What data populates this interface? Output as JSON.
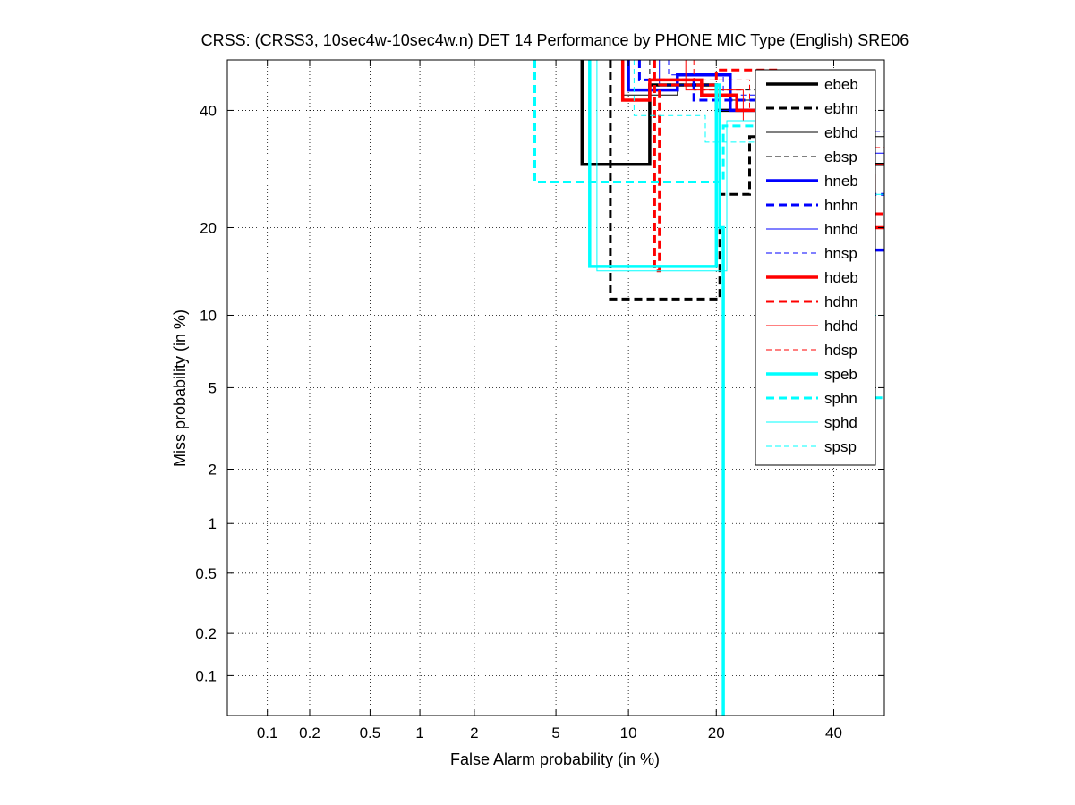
{
  "chart_data": {
    "type": "line",
    "title": "CRSS: (CRSS3, 10sec4w-10sec4w.n) DET 14 Performance by PHONE MIC Type (English) SRE06",
    "xlabel": "False Alarm probability (in %)",
    "ylabel": "Miss probability (in %)",
    "xlim": [
      0.05,
      50
    ],
    "ylim": [
      0.05,
      50
    ],
    "x_scale": "normal-deviate (probit)",
    "y_scale": "normal-deviate (probit)",
    "grid": true,
    "legend_position": "top-right",
    "x_ticks": [
      {
        "value": 0.1,
        "label": "0.1"
      },
      {
        "value": 0.2,
        "label": "0.2"
      },
      {
        "value": 0.5,
        "label": "0.5"
      },
      {
        "value": 1,
        "label": "1"
      },
      {
        "value": 2,
        "label": "2"
      },
      {
        "value": 5,
        "label": "5"
      },
      {
        "value": 10,
        "label": "10"
      },
      {
        "value": 20,
        "label": "20"
      },
      {
        "value": 40,
        "label": "40"
      }
    ],
    "y_ticks": [
      {
        "value": 0.1,
        "label": "0.1"
      },
      {
        "value": 0.2,
        "label": "0.2"
      },
      {
        "value": 0.5,
        "label": "0.5"
      },
      {
        "value": 1,
        "label": "1"
      },
      {
        "value": 2,
        "label": "2"
      },
      {
        "value": 5,
        "label": "5"
      },
      {
        "value": 10,
        "label": "10"
      },
      {
        "value": 20,
        "label": "20"
      },
      {
        "value": 40,
        "label": "40"
      }
    ],
    "series": [
      {
        "name": "ebeb",
        "color": "#000000",
        "width": 3.5,
        "dash": "",
        "points": [
          [
            6.5,
            50
          ],
          [
            6.5,
            30
          ],
          [
            12,
            30
          ],
          [
            12,
            45
          ],
          [
            20,
            45
          ],
          [
            20,
            40
          ],
          [
            30,
            40
          ],
          [
            30,
            30
          ],
          [
            50,
            30
          ]
        ]
      },
      {
        "name": "ebhn",
        "color": "#000000",
        "width": 3,
        "dash": "9,5",
        "points": [
          [
            8.5,
            50
          ],
          [
            8.5,
            11.5
          ],
          [
            20.5,
            11.5
          ],
          [
            20.5,
            25
          ],
          [
            25,
            25
          ],
          [
            25,
            35
          ],
          [
            35,
            35
          ],
          [
            35,
            20
          ],
          [
            50,
            20
          ]
        ]
      },
      {
        "name": "ebhd",
        "color": "#000000",
        "width": 1,
        "dash": "",
        "points": [
          [
            9.5,
            50
          ],
          [
            9.5,
            43
          ],
          [
            15,
            43
          ],
          [
            15,
            47
          ],
          [
            22,
            47
          ],
          [
            22,
            42
          ],
          [
            40,
            42
          ],
          [
            40,
            35
          ],
          [
            50,
            35
          ]
        ]
      },
      {
        "name": "ebsp",
        "color": "#000000",
        "width": 1,
        "dash": "6,4",
        "points": [
          [
            12,
            50
          ],
          [
            12,
            46
          ],
          [
            17,
            46
          ],
          [
            17,
            44
          ],
          [
            26,
            44
          ],
          [
            26,
            38
          ],
          [
            40,
            38
          ],
          [
            40,
            30
          ],
          [
            50,
            30
          ]
        ]
      },
      {
        "name": "hneb",
        "color": "#0000ff",
        "width": 3.5,
        "dash": "",
        "points": [
          [
            10,
            50
          ],
          [
            10,
            44
          ],
          [
            15,
            44
          ],
          [
            15,
            47
          ],
          [
            22,
            47
          ],
          [
            22,
            40
          ],
          [
            30,
            40
          ],
          [
            30,
            30
          ],
          [
            47,
            30
          ],
          [
            47,
            17
          ],
          [
            50,
            17
          ]
        ]
      },
      {
        "name": "hnhn",
        "color": "#0000ff",
        "width": 3,
        "dash": "9,5",
        "points": [
          [
            11,
            50
          ],
          [
            11,
            46
          ],
          [
            17,
            46
          ],
          [
            17,
            42
          ],
          [
            28,
            42
          ],
          [
            28,
            35
          ],
          [
            40,
            35
          ],
          [
            40,
            25
          ],
          [
            50,
            25
          ]
        ]
      },
      {
        "name": "hnhd",
        "color": "#0000ff",
        "width": 1,
        "dash": "",
        "points": [
          [
            13,
            50
          ],
          [
            13,
            45
          ],
          [
            20,
            45
          ],
          [
            20,
            40
          ],
          [
            35,
            40
          ],
          [
            35,
            32
          ],
          [
            50,
            32
          ]
        ]
      },
      {
        "name": "hnsp",
        "color": "#0000ff",
        "width": 1,
        "dash": "6,4",
        "points": [
          [
            14,
            50
          ],
          [
            14,
            47
          ],
          [
            21,
            47
          ],
          [
            21,
            43
          ],
          [
            33,
            43
          ],
          [
            33,
            36
          ],
          [
            50,
            36
          ]
        ]
      },
      {
        "name": "hdeb",
        "color": "#ff0000",
        "width": 3.5,
        "dash": "",
        "points": [
          [
            9.5,
            50
          ],
          [
            9.5,
            42
          ],
          [
            12,
            42
          ],
          [
            12,
            46
          ],
          [
            18,
            46
          ],
          [
            18,
            43
          ],
          [
            23,
            43
          ],
          [
            23,
            40
          ],
          [
            38,
            40
          ],
          [
            38,
            28
          ],
          [
            48,
            28
          ],
          [
            48,
            20
          ],
          [
            50,
            20
          ]
        ]
      },
      {
        "name": "hdhn",
        "color": "#ff0000",
        "width": 3,
        "dash": "9,5",
        "points": [
          [
            12.5,
            50
          ],
          [
            12.5,
            14.5
          ],
          [
            13,
            14.5
          ],
          [
            13,
            45
          ],
          [
            20,
            45
          ],
          [
            20,
            48
          ],
          [
            30,
            48
          ],
          [
            30,
            14.5
          ],
          [
            44,
            14.5
          ],
          [
            44,
            22
          ],
          [
            50,
            22
          ]
        ]
      },
      {
        "name": "hdhd",
        "color": "#ff0000",
        "width": 1,
        "dash": "",
        "points": [
          [
            16,
            50
          ],
          [
            16,
            44
          ],
          [
            24,
            44
          ],
          [
            24,
            38
          ],
          [
            36,
            38
          ],
          [
            36,
            30
          ],
          [
            50,
            30
          ]
        ]
      },
      {
        "name": "hdsp",
        "color": "#ff0000",
        "width": 1,
        "dash": "6,4",
        "points": [
          [
            17,
            50
          ],
          [
            17,
            46
          ],
          [
            25,
            46
          ],
          [
            25,
            40
          ],
          [
            38,
            40
          ],
          [
            38,
            33
          ],
          [
            50,
            33
          ]
        ]
      },
      {
        "name": "speb",
        "color": "#00ffff",
        "width": 3.5,
        "dash": "",
        "points": [
          [
            7,
            50
          ],
          [
            7,
            15
          ],
          [
            20,
            15
          ],
          [
            20,
            45
          ],
          [
            20.5,
            45
          ],
          [
            20.5,
            20
          ],
          [
            21,
            20
          ],
          [
            21,
            0.05
          ]
        ]
      },
      {
        "name": "sphn",
        "color": "#00ffff",
        "width": 3,
        "dash": "9,5",
        "points": [
          [
            4,
            50
          ],
          [
            4,
            27
          ],
          [
            21,
            27
          ],
          [
            21,
            37
          ],
          [
            30,
            37
          ],
          [
            30,
            27
          ],
          [
            45,
            27
          ],
          [
            45,
            4.5
          ],
          [
            50,
            4.5
          ]
        ]
      },
      {
        "name": "sphd",
        "color": "#00ffff",
        "width": 1,
        "dash": "",
        "points": [
          [
            7.5,
            50
          ],
          [
            7.5,
            14.5
          ],
          [
            21.5,
            14.5
          ],
          [
            21.5,
            38
          ],
          [
            30,
            38
          ],
          [
            30,
            25
          ],
          [
            50,
            25
          ],
          [
            50,
            12
          ]
        ]
      },
      {
        "name": "spsp",
        "color": "#00ffff",
        "width": 1,
        "dash": "6,4",
        "points": [
          [
            10.5,
            50
          ],
          [
            10.5,
            39
          ],
          [
            18.5,
            39
          ],
          [
            18.5,
            34
          ],
          [
            27,
            34
          ],
          [
            27,
            28
          ],
          [
            43,
            28
          ],
          [
            43,
            10
          ],
          [
            50,
            10
          ]
        ]
      }
    ]
  }
}
